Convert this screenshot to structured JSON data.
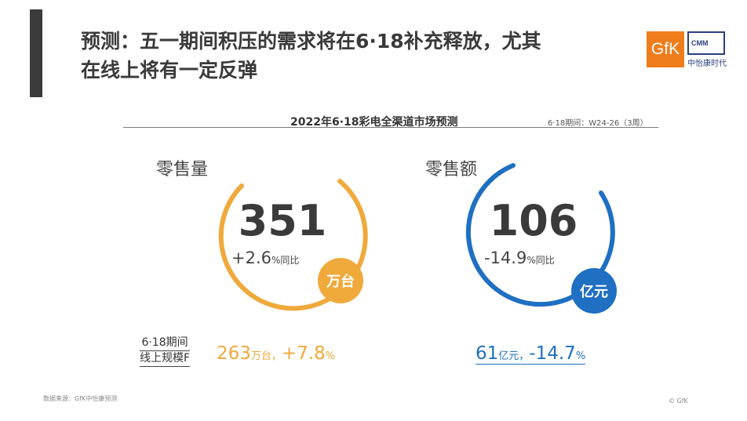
{
  "title": {
    "line1": "预测：五一期间积压的需求将在6·18补充释放，尤其",
    "line2": "在线上将有一定反弹"
  },
  "logos": {
    "gfk": "GfK",
    "cmm": "CMM",
    "cmm_name": "中怡康时代"
  },
  "chart_title": "2022年6·18彩电全渠道市场预测",
  "period": "6·18期间：W24-26（3周）",
  "volume": {
    "label": "零售量",
    "value": "351",
    "change": "+2.6",
    "change_unit": "%同比",
    "unit_badge": "万台",
    "color": "#f0a93b"
  },
  "revenue": {
    "label": "零售额",
    "value": "106",
    "change": "-14.9",
    "change_unit": "%同比",
    "unit_badge": "亿元",
    "color": "#1f6fc2"
  },
  "online": {
    "label_line1": "6·18期间",
    "label_line2": "线上规模F",
    "volume_value": "263",
    "volume_unit": "万台，",
    "volume_change": "+7.8",
    "volume_change_unit": "%",
    "revenue_value": "61",
    "revenue_unit": "亿元，",
    "revenue_change": "-14.7",
    "revenue_change_unit": "%"
  },
  "footer": {
    "source": "数据来源：GfK中怡康预测",
    "copyright": "© GfK"
  }
}
